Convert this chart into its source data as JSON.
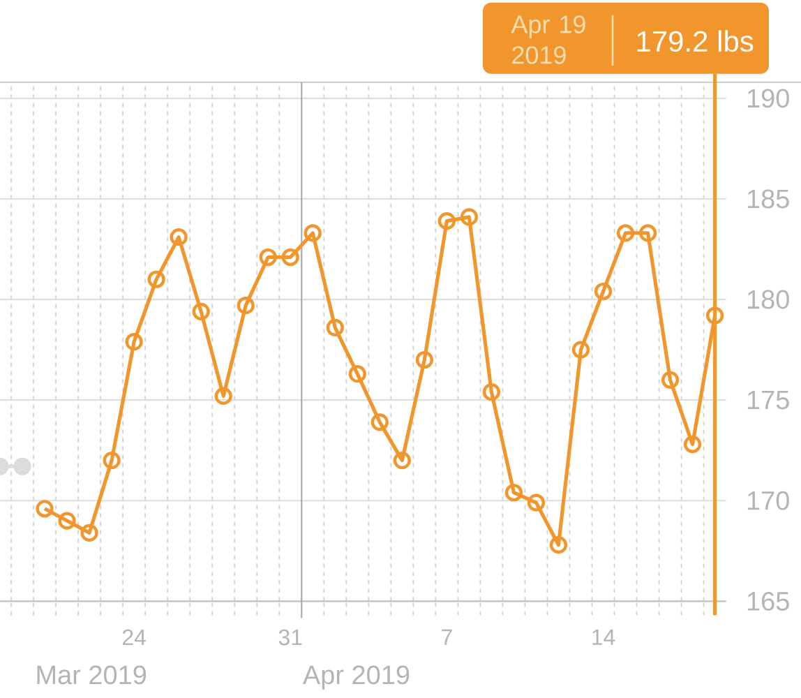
{
  "chart_data": {
    "type": "line",
    "series": [
      {
        "color": "#dcdcdc",
        "x": [
          "2019-03-18T12:00",
          "2019-03-19T12:00"
        ],
        "values": [
          171.7,
          171.7
        ]
      },
      {
        "color": "#f0962c",
        "x": [
          "2019-03-20T12:00",
          "2019-03-21T12:00",
          "2019-03-22T12:00",
          "2019-03-23T12:00",
          "2019-03-24T12:00",
          "2019-03-25T12:00",
          "2019-03-26T12:00",
          "2019-03-27T12:00",
          "2019-03-28T12:00",
          "2019-03-29T12:00",
          "2019-03-30T12:00",
          "2019-03-31T12:00",
          "2019-04-01T12:00",
          "2019-04-02T12:00",
          "2019-04-03T12:00",
          "2019-04-04T12:00",
          "2019-04-05T12:00",
          "2019-04-06T12:00",
          "2019-04-07T12:00",
          "2019-04-08T12:00",
          "2019-04-09T12:00",
          "2019-04-10T12:00",
          "2019-04-11T12:00",
          "2019-04-12T12:00",
          "2019-04-13T12:00",
          "2019-04-14T12:00",
          "2019-04-15T12:00",
          "2019-04-16T12:00",
          "2019-04-17T12:00",
          "2019-04-18T12:00",
          "2019-04-19T12:00"
        ],
        "values": [
          169.6,
          169.0,
          168.4,
          172.0,
          177.9,
          181.0,
          183.1,
          179.4,
          175.2,
          179.7,
          182.1,
          182.1,
          183.3,
          178.6,
          176.3,
          173.9,
          172.0,
          177.0,
          183.9,
          184.1,
          175.4,
          170.4,
          169.9,
          167.8,
          177.5,
          180.4,
          183.3,
          183.3,
          176.0,
          172.8,
          179.2
        ]
      }
    ],
    "xlim": [
      "2019-03-18T12:00",
      "2019-04-20"
    ],
    "xticks": [
      {
        "value": "2019-03-19",
        "label": null
      },
      {
        "value": "2019-03-20",
        "label": null
      },
      {
        "value": "2019-03-21",
        "label": null
      },
      {
        "value": "2019-03-22",
        "label": null
      },
      {
        "value": "2019-03-23",
        "label": null
      },
      {
        "value": "2019-03-24",
        "label": null
      },
      {
        "value": "2019-03-24T12:00",
        "label": "24"
      },
      {
        "value": "2019-03-25",
        "label": null
      },
      {
        "value": "2019-03-26",
        "label": null
      },
      {
        "value": "2019-03-27",
        "label": null
      },
      {
        "value": "2019-03-28",
        "label": null
      },
      {
        "value": "2019-03-29",
        "label": null
      },
      {
        "value": "2019-03-30",
        "label": null
      },
      {
        "value": "2019-03-31",
        "label": null
      },
      {
        "value": "2019-03-31T12:00",
        "label": "31"
      },
      {
        "value": "2019-04-02",
        "label": null
      },
      {
        "value": "2019-04-03",
        "label": null
      },
      {
        "value": "2019-04-04",
        "label": null
      },
      {
        "value": "2019-04-05",
        "label": null
      },
      {
        "value": "2019-04-06",
        "label": null
      },
      {
        "value": "2019-04-07",
        "label": null
      },
      {
        "value": "2019-04-07T12:00",
        "label": "7"
      },
      {
        "value": "2019-04-08",
        "label": null
      },
      {
        "value": "2019-04-09",
        "label": null
      },
      {
        "value": "2019-04-10",
        "label": null
      },
      {
        "value": "2019-04-11",
        "label": null
      },
      {
        "value": "2019-04-12",
        "label": null
      },
      {
        "value": "2019-04-13",
        "label": null
      },
      {
        "value": "2019-04-14",
        "label": null
      },
      {
        "value": "2019-04-14T12:00",
        "label": "14"
      },
      {
        "value": "2019-04-15",
        "label": null
      },
      {
        "value": "2019-04-16",
        "label": null
      },
      {
        "value": "2019-04-17",
        "label": null
      },
      {
        "value": "2019-04-18",
        "label": null
      },
      {
        "value": "2019-04-19",
        "label": null
      }
    ],
    "ylim": [
      165,
      190.8
    ],
    "yticks": [
      165,
      170,
      175,
      180,
      185,
      190
    ],
    "grid": true,
    "marker": "circle",
    "line_style": "solid",
    "ref_lines": [
      {
        "axis": "x",
        "value": "2019-04-01",
        "label": "Apr 2019",
        "color": "#a6a6a6"
      },
      {
        "axis": "x",
        "value": "2019-04-19T12:00",
        "color": "#f0962c"
      }
    ],
    "annotations": [
      "Mar 2019",
      "Apr 19 2019",
      "179.2 lbs"
    ]
  }
}
